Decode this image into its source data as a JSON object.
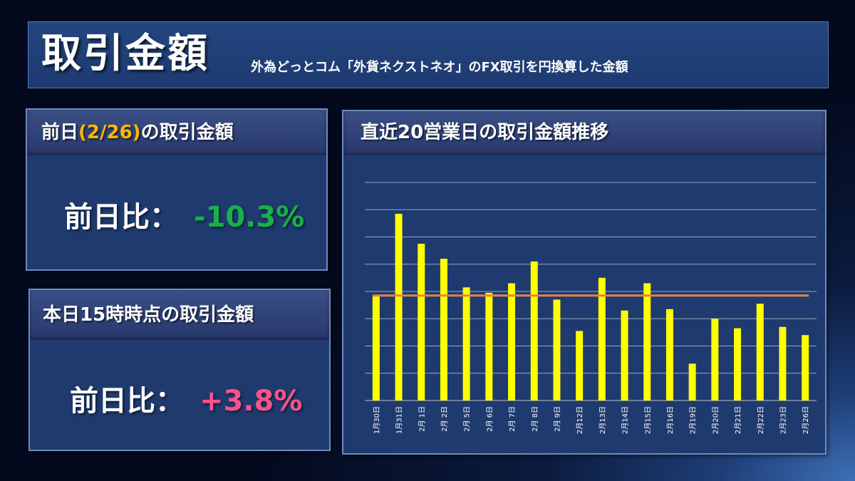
{
  "header": {
    "title": "取引金額",
    "subtitle": "外為どっとコム「外貨ネクストネオ」のFX取引を円換算した金額"
  },
  "prev_panel": {
    "title_before": "前日",
    "title_highlight": "(2/26)",
    "title_after": "の取引金額",
    "metric_label": "前日比：",
    "metric_value": "-10.3%"
  },
  "today_panel": {
    "title": "本日15時時点の取引金額",
    "metric_label": "前日比：",
    "metric_value": "+3.8%"
  },
  "colors": {
    "bar": "#ffff00",
    "average_line": "#e8813a",
    "gridline": "#ffffff",
    "negative": "#19b04a",
    "positive": "#f7538a",
    "highlight": "#ffb800"
  },
  "chart_data": {
    "type": "bar",
    "title": "直近20営業日の取引金額推移",
    "categories": [
      "1月30日",
      "1月31日",
      "2月 1日",
      "2月 2日",
      "2月 5日",
      "2月 6日",
      "2月 7日",
      "2月 8日",
      "2月 9日",
      "2月12日",
      "2月13日",
      "2月14日",
      "2月15日",
      "2月16日",
      "2月19日",
      "2月20日",
      "2月21日",
      "2月22日",
      "2月23日",
      "2月26日"
    ],
    "values": [
      3.85,
      6.85,
      5.75,
      5.2,
      4.15,
      3.95,
      4.3,
      5.1,
      3.7,
      2.55,
      4.5,
      3.3,
      4.3,
      3.35,
      1.35,
      3.0,
      2.65,
      3.55,
      2.7,
      2.4
    ],
    "average": 3.85,
    "ylim": [
      0,
      8
    ],
    "y_ticks_shown": false,
    "grid": true,
    "legend": "none"
  }
}
